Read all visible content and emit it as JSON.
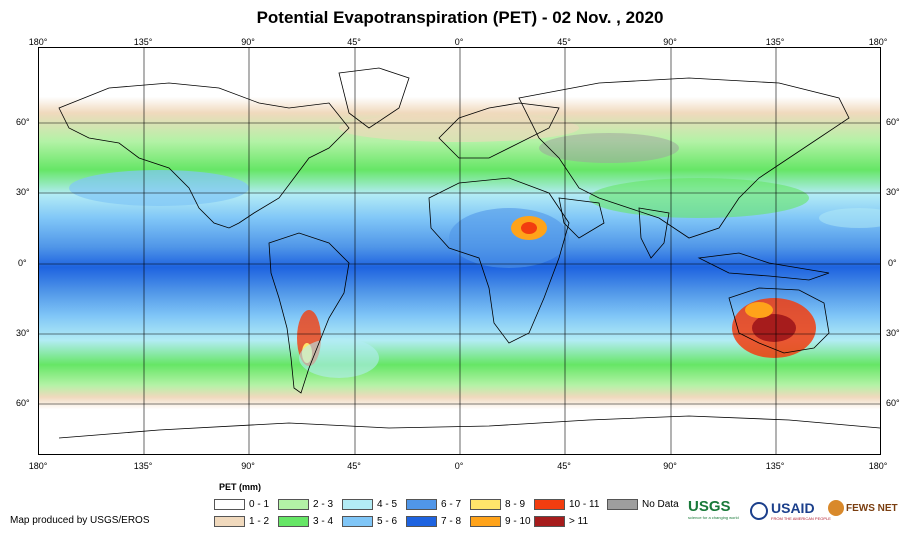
{
  "title": "Potential Evapotranspiration (PET) - 02 Nov. , 2020",
  "axes": {
    "longitudes": [
      "180°",
      "135°",
      "90°",
      "45°",
      "0°",
      "45°",
      "90°",
      "135°",
      "180°"
    ],
    "latitudes": [
      "60°",
      "30°",
      "0°",
      "30°",
      "60°"
    ]
  },
  "legend": {
    "title": "PET (mm)",
    "items": [
      {
        "label": "0 - 1",
        "color": "#ffffff"
      },
      {
        "label": "1 - 2",
        "color": "#f0d9bd"
      },
      {
        "label": "2 - 3",
        "color": "#b3f2a6"
      },
      {
        "label": "3 - 4",
        "color": "#66e666"
      },
      {
        "label": "4 - 5",
        "color": "#b3ecf5"
      },
      {
        "label": "5 - 6",
        "color": "#80c6f7"
      },
      {
        "label": "6 - 7",
        "color": "#5096e8"
      },
      {
        "label": "7 - 8",
        "color": "#1e63e0"
      },
      {
        "label": "8 - 9",
        "color": "#ffe56b"
      },
      {
        "label": "9 - 10",
        "color": "#ffa31a"
      },
      {
        "label": "10 - 11",
        "color": "#f23d0f"
      },
      {
        "label": "> 11",
        "color": "#a61c1c"
      },
      {
        "label": "No Data",
        "color": "#9e9e9e"
      }
    ]
  },
  "credit": "Map produced by USGS/EROS",
  "logos": {
    "usgs": "USGS",
    "usgs_tagline": "science for a changing world",
    "usaid": "USAID",
    "usaid_tagline": "FROM THE AMERICAN PEOPLE",
    "fews": "FEWS NET"
  }
}
